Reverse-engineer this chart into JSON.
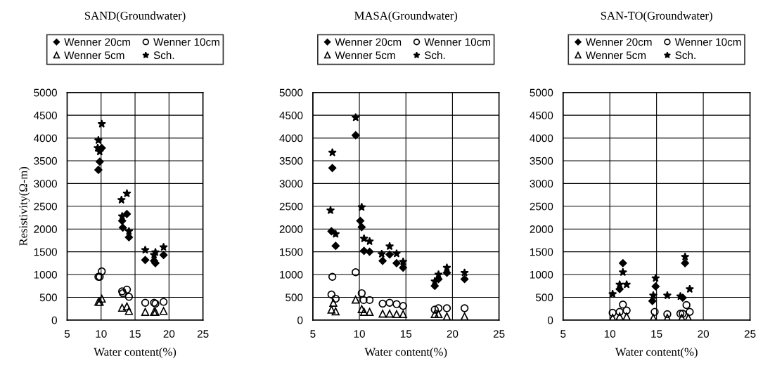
{
  "chart_data": [
    {
      "type": "scatter",
      "title": "SAND(Groundwater)",
      "xlabel": "Water content(%)",
      "ylabel": "Resistivity(Ω-m)",
      "xlim": [
        5,
        25
      ],
      "ylim": [
        0,
        5000
      ],
      "xticks": [
        5,
        10,
        15,
        20,
        25
      ],
      "yticks": [
        0,
        500,
        1000,
        1500,
        2000,
        2500,
        3000,
        3500,
        4000,
        4500,
        5000
      ],
      "grid": true,
      "legend": "top",
      "series": [
        {
          "name": "Wenner 20cm",
          "color": "#000000",
          "marker": "diamond",
          "x": [
            9.6,
            9.8,
            10.1,
            13.1,
            13.2,
            13.8,
            14.1,
            16.5,
            17.8,
            18.0,
            19.2
          ],
          "values": [
            3300,
            3480,
            3780,
            2180,
            2030,
            2330,
            1820,
            1320,
            1300,
            1250,
            1430
          ]
        },
        {
          "name": "Wenner 10cm",
          "color": "#000000",
          "marker": "circle",
          "x": [
            9.6,
            9.8,
            10.1,
            13.1,
            13.2,
            13.8,
            14.1,
            16.5,
            17.8,
            18.0,
            19.2
          ],
          "values": [
            950,
            950,
            1070,
            630,
            590,
            670,
            510,
            380,
            380,
            360,
            400
          ]
        },
        {
          "name": "Wenner 5cm",
          "color": "#000000",
          "marker": "triangle",
          "x": [
            9.6,
            9.8,
            10.1,
            13.1,
            13.8,
            14.1,
            16.5,
            17.8,
            18.0,
            19.2
          ],
          "values": [
            400,
            400,
            470,
            270,
            300,
            200,
            180,
            180,
            180,
            200
          ]
        },
        {
          "name": "Sch.",
          "color": "#000000",
          "marker": "star",
          "x": [
            9.5,
            9.6,
            9.8,
            10.1,
            13.0,
            13.1,
            13.8,
            14.1,
            16.5,
            17.8,
            18.0,
            19.2
          ],
          "values": [
            3780,
            3950,
            3700,
            4310,
            2640,
            2280,
            2780,
            1950,
            1540,
            1430,
            1490,
            1600
          ]
        }
      ]
    },
    {
      "type": "scatter",
      "title": "MASA(Groundwater)",
      "xlabel": "Water content(%)",
      "xlim": [
        5,
        25
      ],
      "ylim": [
        0,
        5000
      ],
      "xticks": [
        5,
        10,
        15,
        20,
        25
      ],
      "yticks": [
        0,
        500,
        1000,
        1500,
        2000,
        2500,
        3000,
        3500,
        4000,
        4500,
        5000
      ],
      "grid": true,
      "legend": "top",
      "series": [
        {
          "name": "Wenner 20cm",
          "color": "#000000",
          "marker": "diamond",
          "x": [
            7.1,
            7.0,
            7.45,
            9.6,
            10.1,
            10.25,
            10.5,
            11.1,
            12.5,
            13.25,
            14.0,
            14.7,
            18.1,
            18.5,
            19.4,
            21.3
          ],
          "values": [
            3340,
            1950,
            1630,
            4060,
            2180,
            2040,
            1520,
            1500,
            1300,
            1440,
            1250,
            1150,
            750,
            900,
            1040,
            900
          ]
        },
        {
          "name": "Wenner 10cm",
          "color": "#000000",
          "marker": "circle",
          "x": [
            7.1,
            7.0,
            7.45,
            9.6,
            10.25,
            10.45,
            11.1,
            12.5,
            13.25,
            14.0,
            14.7,
            18.1,
            18.5,
            19.4,
            21.3
          ],
          "values": [
            950,
            560,
            470,
            1050,
            590,
            440,
            440,
            360,
            380,
            350,
            310,
            230,
            260,
            260,
            260
          ]
        },
        {
          "name": "Wenner 5cm",
          "color": "#000000",
          "marker": "triangle",
          "x": [
            7.0,
            7.2,
            7.45,
            9.6,
            10.25,
            10.5,
            11.1,
            12.5,
            13.25,
            14.0,
            14.7,
            18.1,
            18.5,
            19.4,
            21.3
          ],
          "values": [
            230,
            380,
            190,
            450,
            240,
            180,
            180,
            140,
            140,
            130,
            130,
            130,
            130,
            80,
            80
          ]
        },
        {
          "name": "Sch.",
          "color": "#000000",
          "marker": "star",
          "x": [
            7.1,
            6.9,
            7.45,
            9.6,
            10.25,
            10.5,
            11.1,
            12.4,
            13.25,
            14.0,
            14.7,
            18.1,
            18.5,
            19.4,
            21.3
          ],
          "values": [
            3680,
            2410,
            1890,
            4450,
            2480,
            1790,
            1730,
            1450,
            1620,
            1460,
            1280,
            850,
            1000,
            1150,
            1040
          ]
        }
      ]
    },
    {
      "type": "scatter",
      "title": "SAN-TO(Groundwater)",
      "xlabel": "Water content(%)",
      "xlim": [
        5,
        25
      ],
      "ylim": [
        0,
        5000
      ],
      "xticks": [
        5,
        10,
        15,
        20,
        25
      ],
      "yticks": [
        0,
        500,
        1000,
        1500,
        2000,
        2500,
        3000,
        3500,
        4000,
        4500,
        5000
      ],
      "grid": true,
      "legend": "top",
      "series": [
        {
          "name": "Wenner 20cm",
          "color": "#000000",
          "marker": "diamond",
          "x": [
            11.4,
            11.05,
            14.55,
            14.9,
            18.05,
            17.8
          ],
          "values": [
            1250,
            680,
            420,
            740,
            1250,
            490
          ]
        },
        {
          "name": "Wenner 10cm",
          "color": "#000000",
          "marker": "circle",
          "x": [
            10.3,
            11.05,
            11.4,
            11.8,
            14.8,
            16.15,
            17.55,
            17.8,
            18.2,
            18.55
          ],
          "values": [
            160,
            180,
            340,
            210,
            180,
            130,
            140,
            140,
            330,
            180
          ]
        },
        {
          "name": "Wenner 5cm",
          "color": "#000000",
          "marker": "triangle",
          "x": [
            10.3,
            11.05,
            11.8,
            14.65,
            16.15,
            17.7,
            18.4
          ],
          "values": [
            50,
            80,
            80,
            50,
            50,
            50,
            50
          ]
        },
        {
          "name": "Sch.",
          "color": "#000000",
          "marker": "star",
          "x": [
            10.3,
            11.4,
            11.05,
            11.8,
            14.9,
            14.65,
            16.15,
            17.55,
            18.05,
            18.55
          ],
          "values": [
            570,
            1050,
            780,
            780,
            920,
            540,
            540,
            520,
            1390,
            680
          ]
        }
      ]
    }
  ]
}
